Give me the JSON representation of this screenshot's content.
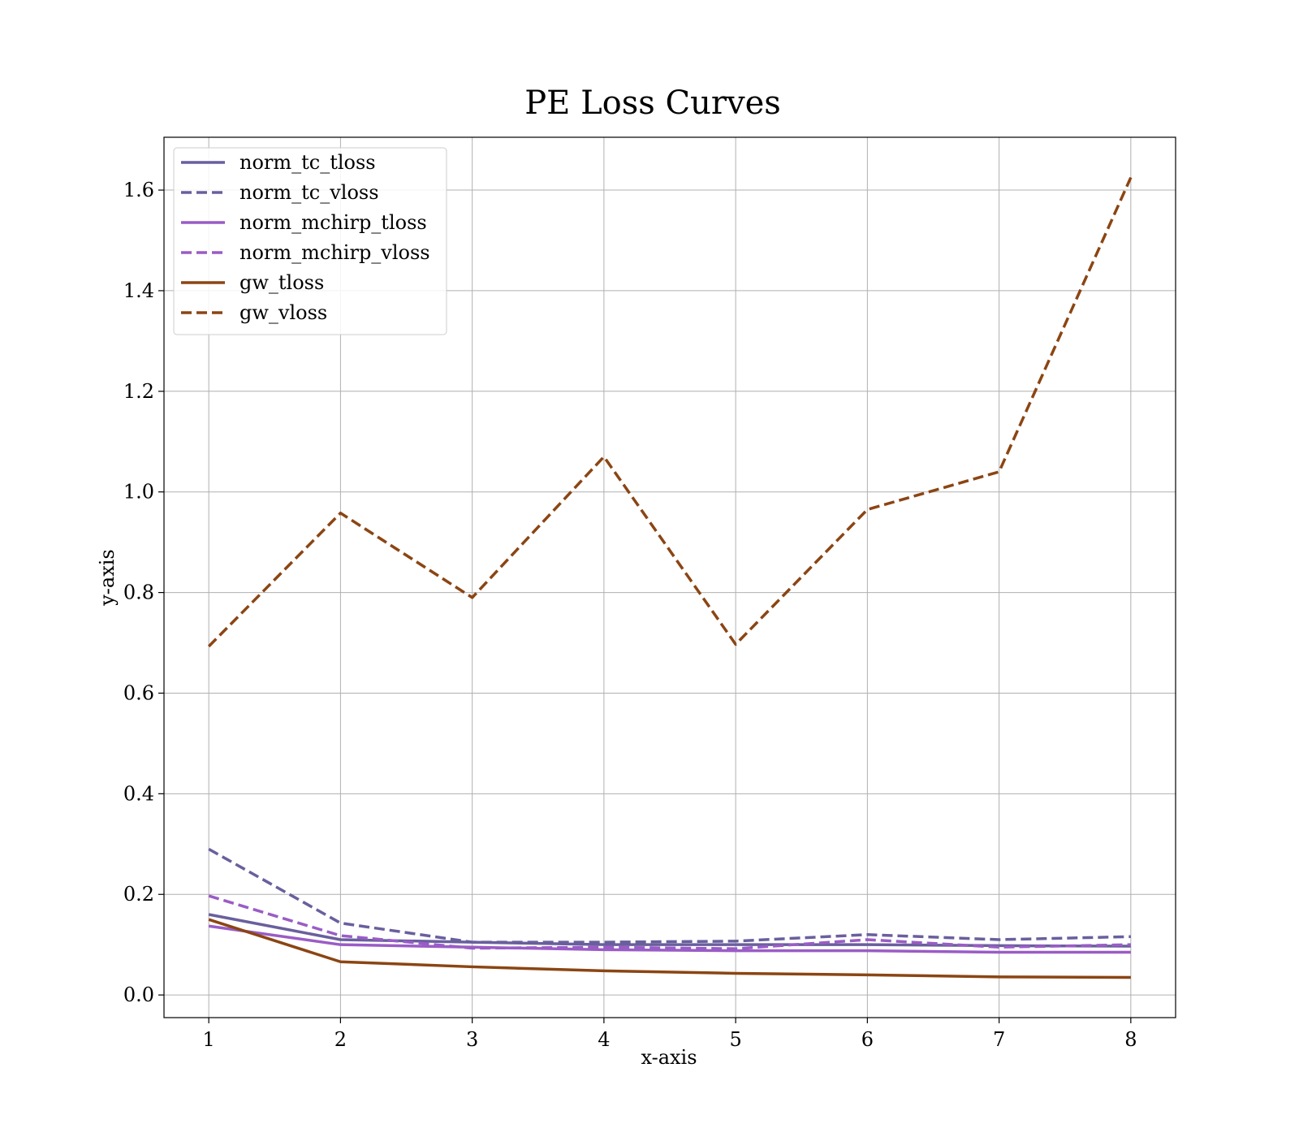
{
  "chart_data": {
    "type": "line",
    "title": "PE Loss Curves",
    "xlabel": "x-axis",
    "ylabel": "y-axis",
    "x": [
      1,
      2,
      3,
      4,
      5,
      6,
      7,
      8
    ],
    "xlim": [
      0.66,
      8.34
    ],
    "ylim": [
      -0.045,
      1.705
    ],
    "xticks": [
      "1",
      "2",
      "3",
      "4",
      "5",
      "6",
      "7",
      "8"
    ],
    "yticks": [
      "0.0",
      "0.2",
      "0.4",
      "0.6",
      "0.8",
      "1.0",
      "1.2",
      "1.4",
      "1.6"
    ],
    "grid": true,
    "legend_position": "top-left",
    "series": [
      {
        "name": "norm_tc_tloss",
        "color": "#6a5f9d",
        "dashed": false,
        "values": [
          0.16,
          0.11,
          0.105,
          0.1,
          0.1,
          0.1,
          0.098,
          0.097
        ]
      },
      {
        "name": "norm_tc_vloss",
        "color": "#6a5f9d",
        "dashed": true,
        "values": [
          0.29,
          0.143,
          0.105,
          0.105,
          0.107,
          0.12,
          0.11,
          0.116
        ]
      },
      {
        "name": "norm_mchirp_tloss",
        "color": "#9a5cc6",
        "dashed": false,
        "values": [
          0.137,
          0.1,
          0.095,
          0.09,
          0.088,
          0.088,
          0.085,
          0.085
        ]
      },
      {
        "name": "norm_mchirp_vloss",
        "color": "#9a5cc6",
        "dashed": true,
        "values": [
          0.197,
          0.118,
          0.093,
          0.095,
          0.092,
          0.11,
          0.095,
          0.1
        ]
      },
      {
        "name": "gw_tloss",
        "color": "#8b4513",
        "dashed": false,
        "values": [
          0.15,
          0.066,
          0.056,
          0.048,
          0.043,
          0.04,
          0.036,
          0.035
        ]
      },
      {
        "name": "gw_vloss",
        "color": "#8b4513",
        "dashed": true,
        "values": [
          0.693,
          0.958,
          0.79,
          1.07,
          0.697,
          0.965,
          1.04,
          1.625
        ]
      }
    ]
  }
}
